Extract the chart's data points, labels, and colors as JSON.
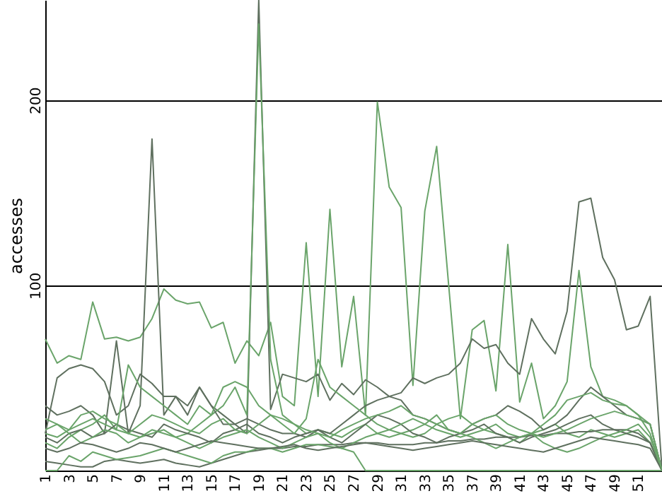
{
  "chart_data": {
    "type": "line",
    "ylabel": "accesses",
    "categories": [
      "1",
      null,
      "3",
      null,
      "5",
      null,
      "7",
      null,
      "9",
      null,
      "11",
      null,
      "13",
      null,
      "15",
      null,
      "17",
      null,
      "19",
      null,
      "21",
      null,
      "23",
      null,
      "25",
      null,
      "27",
      null,
      "29",
      null,
      "31",
      null,
      "33",
      null,
      "35",
      null,
      "37",
      null,
      "39",
      null,
      "41",
      null,
      "43",
      null,
      "45",
      null,
      "47",
      null,
      "49",
      null,
      "51",
      null,
      null
    ],
    "ylim": [
      0,
      254
    ],
    "yticks": [
      100,
      200
    ],
    "grid": "y",
    "marker": "none",
    "line_style": "solid",
    "series": [
      {
        "color": "#6aa46a",
        "values": [
          71,
          58,
          62,
          60,
          91,
          71,
          72,
          70,
          72,
          82,
          98,
          92,
          90,
          91,
          77,
          80,
          58,
          70,
          62,
          80,
          40,
          35,
          123,
          40,
          141,
          56,
          94,
          30,
          199,
          153,
          142,
          46,
          140,
          175,
          101,
          28,
          76,
          81,
          43,
          122,
          37,
          58,
          28,
          35,
          48,
          108,
          56,
          40,
          38,
          35,
          30,
          25,
          0
        ]
      },
      {
        "color": "#5f705f",
        "values": [
          35,
          30,
          32,
          35,
          30,
          20,
          70,
          20,
          35,
          179,
          30,
          40,
          35,
          45,
          35,
          30,
          25,
          20,
          254,
          33,
          52,
          50,
          48,
          52,
          38,
          47,
          41,
          49,
          45,
          40,
          42,
          50,
          47,
          50,
          52,
          58,
          71,
          66,
          68,
          58,
          52,
          82,
          71,
          63,
          86,
          145,
          147,
          115,
          103,
          76,
          78,
          94,
          0
        ]
      },
      {
        "color": "#6aa46a",
        "values": [
          20,
          18,
          22,
          25,
          28,
          25,
          22,
          20,
          18,
          20,
          22,
          18,
          20,
          25,
          30,
          35,
          45,
          30,
          241,
          60,
          30,
          25,
          20,
          22,
          20,
          18,
          22,
          25,
          20,
          18,
          20,
          22,
          25,
          22,
          20,
          18,
          20,
          22,
          25,
          20,
          18,
          20,
          22,
          25,
          20,
          18,
          22,
          20,
          18,
          20,
          22,
          15,
          0
        ]
      },
      {
        "color": "#5f705f",
        "values": [
          20,
          50,
          55,
          57,
          55,
          48,
          30,
          35,
          52,
          47,
          40,
          40,
          30,
          45,
          35,
          25,
          25,
          28,
          25,
          22,
          20,
          20,
          18,
          22,
          20,
          25,
          30,
          35,
          38,
          40,
          38,
          30,
          28,
          25,
          22,
          20,
          25,
          28,
          30,
          35,
          32,
          28,
          22,
          25,
          30,
          38,
          45,
          40,
          35,
          30,
          28,
          25,
          0
        ]
      },
      {
        "color": "#6aa46a",
        "values": [
          15,
          12,
          18,
          22,
          25,
          30,
          22,
          57,
          45,
          40,
          35,
          30,
          25,
          35,
          30,
          45,
          48,
          45,
          35,
          30,
          25,
          20,
          28,
          60,
          45,
          40,
          35,
          30,
          25,
          22,
          20,
          18,
          20,
          25,
          28,
          30,
          25,
          22,
          20,
          18,
          15,
          20,
          25,
          30,
          38,
          40,
          42,
          38,
          36,
          35,
          30,
          20,
          0
        ]
      },
      {
        "color": "#5f705f",
        "values": [
          5,
          4,
          3,
          2,
          2,
          5,
          6,
          5,
          4,
          5,
          6,
          4,
          3,
          2,
          4,
          6,
          8,
          10,
          11,
          12,
          12,
          13,
          13,
          14,
          14,
          14,
          15,
          15,
          15,
          14,
          14,
          14,
          15,
          15,
          16,
          16,
          17,
          17,
          18,
          18,
          18,
          19,
          19,
          20,
          20,
          21,
          21,
          22,
          22,
          22,
          20,
          15,
          0
        ]
      },
      {
        "color": "#6aa46a",
        "values": [
          0,
          0,
          8,
          5,
          10,
          8,
          6,
          7,
          8,
          10,
          12,
          10,
          8,
          6,
          4,
          8,
          10,
          10,
          12,
          12,
          10,
          12,
          14,
          14,
          13,
          12,
          10,
          0,
          0,
          0,
          0,
          0,
          0,
          0,
          0,
          0,
          0,
          0,
          0,
          0,
          0,
          0,
          0,
          0,
          0,
          0,
          0,
          0,
          0,
          0,
          0,
          0,
          0
        ]
      },
      {
        "color": "#5f705f",
        "values": [
          18,
          15,
          20,
          22,
          18,
          20,
          25,
          22,
          20,
          18,
          25,
          22,
          20,
          18,
          15,
          20,
          22,
          25,
          20,
          18,
          15,
          18,
          20,
          22,
          18,
          15,
          20,
          25,
          30,
          28,
          25,
          20,
          18,
          15,
          18,
          20,
          22,
          25,
          20,
          18,
          15,
          18,
          20,
          22,
          25,
          28,
          30,
          25,
          22,
          20,
          18,
          15,
          0
        ]
      },
      {
        "color": "#6aa46a",
        "values": [
          22,
          25,
          20,
          15,
          18,
          22,
          20,
          15,
          18,
          22,
          20,
          18,
          15,
          12,
          15,
          18,
          20,
          22,
          18,
          15,
          12,
          15,
          18,
          20,
          15,
          12,
          15,
          18,
          20,
          22,
          25,
          28,
          25,
          30,
          22,
          20,
          18,
          15,
          12,
          15,
          18,
          20,
          15,
          12,
          10,
          12,
          15,
          18,
          20,
          22,
          25,
          18,
          0
        ]
      },
      {
        "color": "#5f705f",
        "values": [
          12,
          10,
          12,
          15,
          14,
          12,
          10,
          12,
          15,
          14,
          12,
          10,
          12,
          14,
          16,
          15,
          14,
          13,
          12,
          12,
          13,
          14,
          12,
          11,
          12,
          13,
          14,
          15,
          14,
          13,
          12,
          11,
          12,
          13,
          14,
          15,
          16,
          15,
          14,
          13,
          12,
          11,
          10,
          12,
          14,
          16,
          18,
          17,
          16,
          15,
          14,
          12,
          0
        ]
      },
      {
        "color": "#6aa46a",
        "values": [
          28,
          25,
          22,
          30,
          32,
          28,
          25,
          20,
          25,
          30,
          28,
          25,
          22,
          20,
          25,
          28,
          22,
          20,
          25,
          30,
          28,
          25,
          22,
          20,
          18,
          22,
          25,
          28,
          30,
          32,
          35,
          30,
          28,
          25,
          22,
          20,
          25,
          28,
          30,
          25,
          22,
          20,
          18,
          20,
          22,
          25,
          28,
          30,
          32,
          30,
          28,
          25,
          0
        ]
      }
    ]
  }
}
